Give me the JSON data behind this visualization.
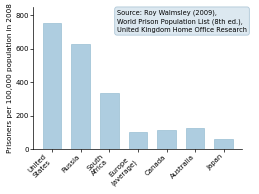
{
  "categories": [
    "United\nStates",
    "Russia",
    "South\nAfrica",
    "Europe\n(average)",
    "Canada",
    "Australia",
    "Japan"
  ],
  "values": [
    755,
    628,
    335,
    105,
    116,
    130,
    63
  ],
  "bar_color": "#aecde0",
  "ylabel": "Prisoners per 100,000 population in 2008",
  "ylim": [
    0,
    850
  ],
  "yticks": [
    0,
    200,
    400,
    600,
    800
  ],
  "annotation": "Source: Roy Walmsley (2009),\nWorld Prison Population List (8th ed.),\nUnited Kingdom Home Office Research",
  "annotation_fontsize": 4.8,
  "ylabel_fontsize": 5.2,
  "tick_fontsize": 5.0,
  "bar_edgecolor": "#8ab5cc",
  "figsize": [
    2.59,
    1.94
  ],
  "dpi": 100
}
